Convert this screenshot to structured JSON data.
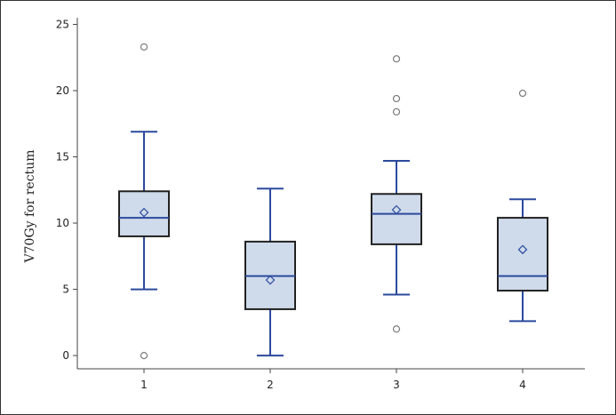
{
  "chart_data": {
    "type": "boxplot",
    "ylabel": "V70Gy for rectum",
    "xlabel": "",
    "title": "",
    "ylim": [
      -1,
      25.5
    ],
    "yticks": [
      0,
      5,
      10,
      15,
      20,
      25
    ],
    "grid": false,
    "colors": {
      "box_fill": "#cfdbea",
      "box_stroke": "#222222",
      "median": "#2b4a9e",
      "whisker": "#2b4a9e",
      "mean_marker": "#2b4a9e",
      "outlier": "#7a7a7a"
    },
    "categories": [
      "1",
      "2",
      "3",
      "4"
    ],
    "boxes": [
      {
        "category": "1",
        "q1": 9.0,
        "median": 10.4,
        "q3": 12.4,
        "whisker_low": 5.0,
        "whisker_high": 16.9,
        "mean": 10.8,
        "outliers": [
          23.3,
          0.0
        ]
      },
      {
        "category": "2",
        "q1": 3.5,
        "median": 6.0,
        "q3": 8.6,
        "whisker_low": 0.0,
        "whisker_high": 12.6,
        "mean": 5.7,
        "outliers": []
      },
      {
        "category": "3",
        "q1": 8.4,
        "median": 10.7,
        "q3": 12.2,
        "whisker_low": 4.6,
        "whisker_high": 14.7,
        "mean": 11.0,
        "outliers": [
          22.4,
          19.4,
          18.4,
          2.0
        ]
      },
      {
        "category": "4",
        "q1": 4.9,
        "median": 6.0,
        "q3": 10.4,
        "whisker_low": 2.6,
        "whisker_high": 11.8,
        "mean": 8.0,
        "outliers": [
          19.8
        ]
      }
    ]
  }
}
